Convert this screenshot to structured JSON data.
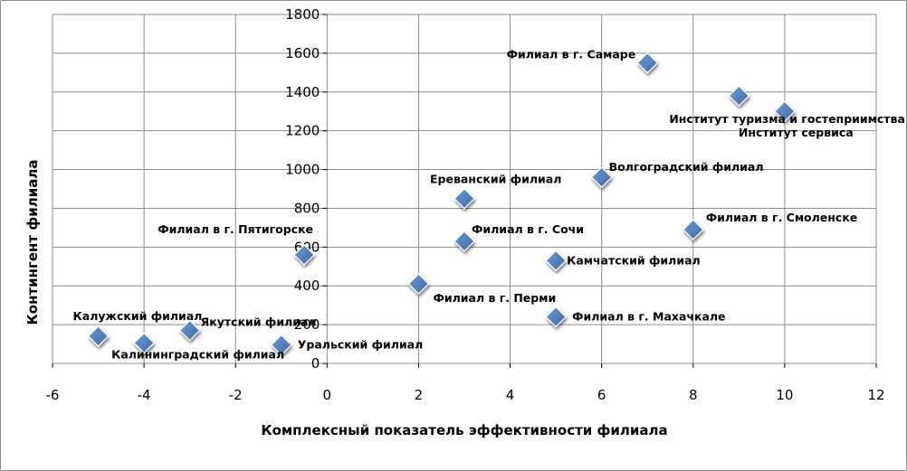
{
  "chart_data": {
    "type": "scatter",
    "title": "",
    "xlabel": "Комплексный показатель эффективности филиала",
    "ylabel": "Контингент филиала",
    "xlim": [
      -6,
      12
    ],
    "ylim": [
      0,
      1800
    ],
    "x_ticks": [
      -6,
      -4,
      -2,
      0,
      2,
      4,
      6,
      8,
      10,
      12
    ],
    "y_ticks": [
      0,
      200,
      400,
      600,
      800,
      1000,
      1200,
      1400,
      1600,
      1800
    ],
    "grid": "horizontal and vertical",
    "legend": "none",
    "marker": "diamond",
    "marker_color": "#4f81bd",
    "points": [
      {
        "label": "Филиал в г. Самаре",
        "x": 7,
        "y": 1550
      },
      {
        "label": "Институт туризма и гостеприимства",
        "x": 9,
        "y": 1380
      },
      {
        "label": "Институт сервиса",
        "x": 10,
        "y": 1300
      },
      {
        "label": "Волгоградский филиал",
        "x": 6,
        "y": 960
      },
      {
        "label": "Ереванский филиал",
        "x": 3,
        "y": 850
      },
      {
        "label": "Филиал в г. Смоленске",
        "x": 8,
        "y": 690
      },
      {
        "label": "Филиал в г. Сочи",
        "x": 3,
        "y": 630
      },
      {
        "label": "Филиал в г. Пятигорске",
        "x": -0.5,
        "y": 560
      },
      {
        "label": "Камчатский филиал",
        "x": 5,
        "y": 530
      },
      {
        "label": "Филиал в г. Перми",
        "x": 2,
        "y": 410
      },
      {
        "label": "Филиал в г. Махачкале",
        "x": 5,
        "y": 240
      },
      {
        "label": "Якутский филиал",
        "x": -3,
        "y": 170
      },
      {
        "label": "Калужский филиал",
        "x": -5,
        "y": 140
      },
      {
        "label": "Калининградский филиал",
        "x": -4,
        "y": 105
      },
      {
        "label": "Уральский филиал",
        "x": -1,
        "y": 95
      }
    ]
  }
}
